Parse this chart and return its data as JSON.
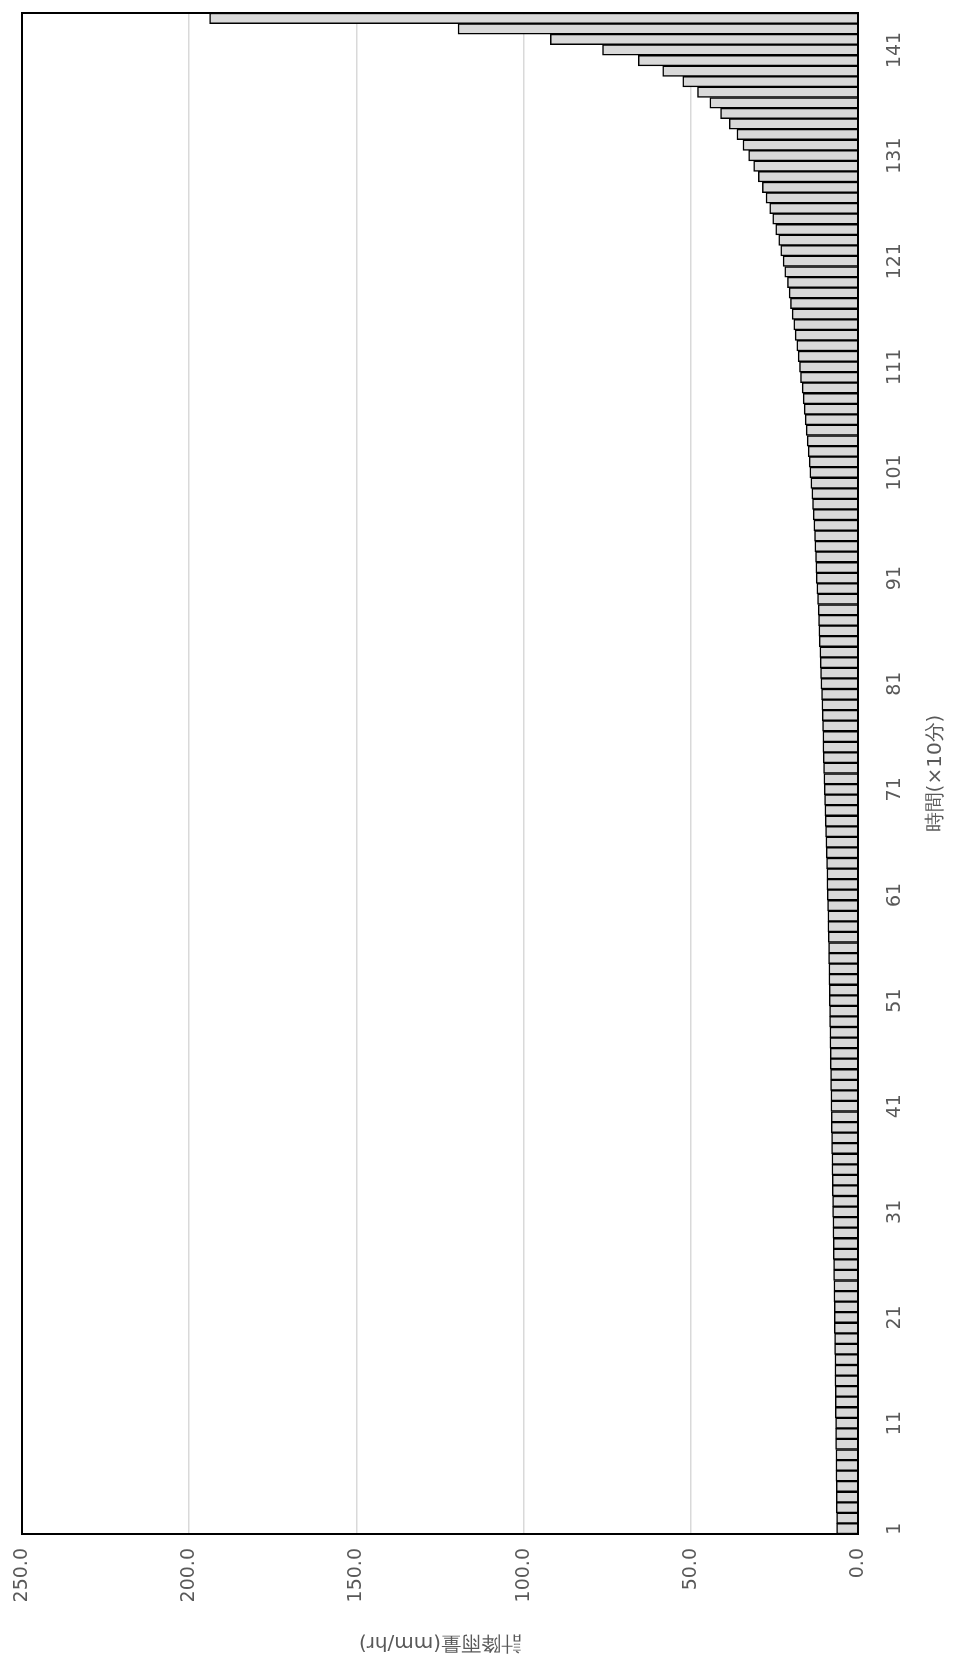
{
  "chart_data": {
    "type": "bar",
    "orientation": "horizontal",
    "xlabel": "計降雨量(mm/hr)",
    "ylabel": "時間(×10分)",
    "categories": [
      null,
      null,
      null,
      "141",
      null,
      null,
      null,
      null,
      null,
      null,
      null,
      null,
      null,
      "131",
      null,
      null,
      null,
      null,
      null,
      null,
      null,
      null,
      null,
      "121",
      null,
      null,
      null,
      null,
      null,
      null,
      null,
      null,
      null,
      "111",
      null,
      null,
      null,
      null,
      null,
      null,
      null,
      null,
      null,
      "101",
      null,
      null,
      null,
      null,
      null,
      null,
      null,
      null,
      null,
      "91",
      null,
      null,
      null,
      null,
      null,
      null,
      null,
      null,
      null,
      "81",
      null,
      null,
      null,
      null,
      null,
      null,
      null,
      null,
      null,
      "71",
      null,
      null,
      null,
      null,
      null,
      null,
      null,
      null,
      null,
      "61",
      null,
      null,
      null,
      null,
      null,
      null,
      null,
      null,
      null,
      "51",
      null,
      null,
      null,
      null,
      null,
      null,
      null,
      null,
      null,
      "41",
      null,
      null,
      null,
      null,
      null,
      null,
      null,
      null,
      null,
      "31",
      null,
      null,
      null,
      null,
      null,
      null,
      null,
      null,
      null,
      "21",
      null,
      null,
      null,
      null,
      null,
      null,
      null,
      null,
      null,
      "11",
      null,
      null,
      null,
      null,
      null,
      null,
      null,
      null,
      null,
      "1"
    ],
    "values": [
      193.9,
      119.6,
      92.0,
      76.4,
      65.7,
      58.4,
      52.4,
      48.0,
      44.3,
      41.1,
      38.5,
      36.2,
      34.4,
      32.7,
      31.2,
      29.8,
      28.6,
      27.5,
      26.4,
      25.5,
      24.6,
      23.7,
      23.1,
      22.4,
      21.9,
      21.1,
      20.6,
      20.2,
      19.7,
      19.2,
      18.8,
      18.3,
      17.9,
      17.5,
      17.2,
      16.7,
      16.4,
      16.1,
      15.8,
      15.5,
      15.2,
      14.9,
      14.6,
      14.4,
      14.1,
      13.8,
      13.6,
      13.4,
      13.2,
      13.0,
      12.9,
      12.7,
      12.6,
      12.5,
      12.3,
      12.1,
      11.9,
      11.8,
      11.7,
      11.6,
      11.4,
      11.3,
      11.2,
      11.1,
      10.9,
      10.8,
      10.7,
      10.6,
      10.5,
      10.5,
      10.4,
      10.3,
      10.2,
      10.1,
      10.0,
      9.9,
      9.8,
      9.7,
      9.6,
      9.5,
      9.4,
      9.3,
      9.3,
      9.2,
      9.1,
      9.0,
      9.0,
      8.9,
      8.8,
      8.8,
      8.7,
      8.7,
      8.6,
      8.6,
      8.5,
      8.5,
      8.4,
      8.4,
      8.3,
      8.3,
      8.2,
      8.2,
      8.1,
      8.1,
      8.0,
      8.0,
      7.9,
      7.9,
      7.8,
      7.8,
      7.7,
      7.7,
      7.6,
      7.6,
      7.5,
      7.5,
      7.4,
      7.4,
      7.3,
      7.3,
      7.2,
      7.2,
      7.1,
      7.1,
      7.1,
      7.0,
      7.0,
      6.9,
      6.9,
      6.9,
      6.8,
      6.8,
      6.8,
      6.7,
      6.7,
      6.7,
      6.6,
      6.6,
      6.6,
      6.5,
      6.5,
      6.5,
      6.4,
      6.4
    ],
    "color": "#d9d9d9",
    "xlim": [
      250,
      0
    ],
    "xticks": [
      {
        "value": 250,
        "label": "250.0"
      },
      {
        "value": 200,
        "label": "200.0"
      },
      {
        "value": 150,
        "label": "150.0"
      },
      {
        "value": 100,
        "label": "100.0"
      },
      {
        "value": 50,
        "label": "50.0"
      },
      {
        "value": 0,
        "label": "0.0"
      }
    ],
    "grid": "x"
  }
}
